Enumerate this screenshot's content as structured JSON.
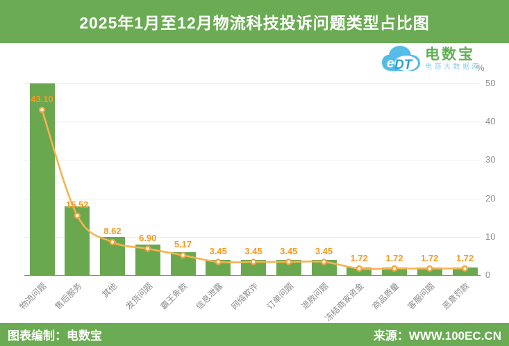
{
  "header": {
    "title": "2025年1月至12月物流科技投诉问题类型占比图"
  },
  "logo": {
    "cloud_text_e": "e",
    "cloud_text_dt": "DT",
    "brand": "电数宝",
    "subtitle": "电商大数据库"
  },
  "footer": {
    "left": "图表编制：电数宝",
    "right": "来源：WWW.100EC.CN"
  },
  "colors": {
    "theme_green": "#6BAB53",
    "bar_green": "#6AA84F",
    "line_orange": "#F8B24F",
    "point_orange": "#F5A33C",
    "value_label_orange": "#F59A23",
    "axis_text_gray": "#8C8C8C",
    "grid_gray": "#ECECEC",
    "cloud_blue": "#55BCE8"
  },
  "chart_data": {
    "type": "bar",
    "title": "2025年1月至12月物流科技投诉问题类型占比图",
    "categories": [
      "物流问题",
      "售后服务",
      "其他",
      "发货问题",
      "霸王条款",
      "信息泄露",
      "网络欺诈",
      "订单问题",
      "退款问题",
      "冻结商家资金",
      "商品质量",
      "客服问题",
      "恶意罚款"
    ],
    "values": [
      43.1,
      15.52,
      8.62,
      6.9,
      5.17,
      3.45,
      3.45,
      3.45,
      3.45,
      1.72,
      1.72,
      1.72,
      1.72
    ],
    "overlay_line": true,
    "unit": "%",
    "xlabel": "",
    "ylabel": "%",
    "ylim": [
      0,
      50
    ],
    "yticks": [
      0,
      10,
      20,
      30,
      40,
      50
    ],
    "grid": "horizontal",
    "legend": "none",
    "value_labels_decimals": 2
  }
}
